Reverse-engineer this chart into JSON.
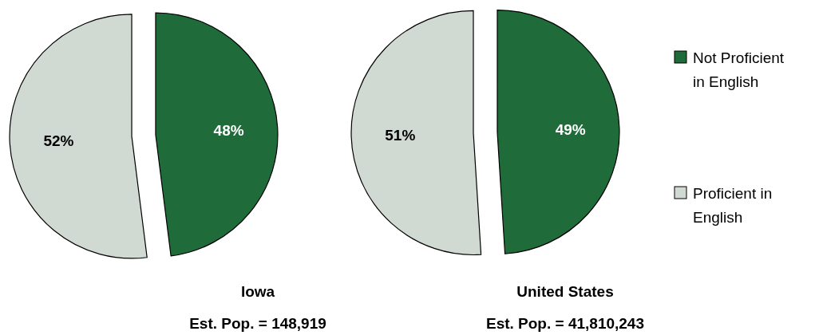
{
  "chart_data": [
    {
      "type": "pie",
      "title": "Iowa",
      "subtitle": "Est. Pop. = 148,919",
      "categories": [
        "Not Proficient in English",
        "Proficient in English"
      ],
      "values": [
        48,
        52
      ],
      "value_labels": [
        "48%",
        "52%"
      ],
      "colors": [
        "#1f6b3a",
        "#d0dad2"
      ],
      "legend": "right"
    },
    {
      "type": "pie",
      "title": "United States",
      "subtitle": "Est. Pop. = 41,810,243",
      "categories": [
        null,
        null
      ],
      "values": [
        49,
        51
      ],
      "value_labels": [
        "49%",
        "51%"
      ],
      "colors": [
        "#1f6b3a",
        "#d0dad2"
      ]
    }
  ]
}
